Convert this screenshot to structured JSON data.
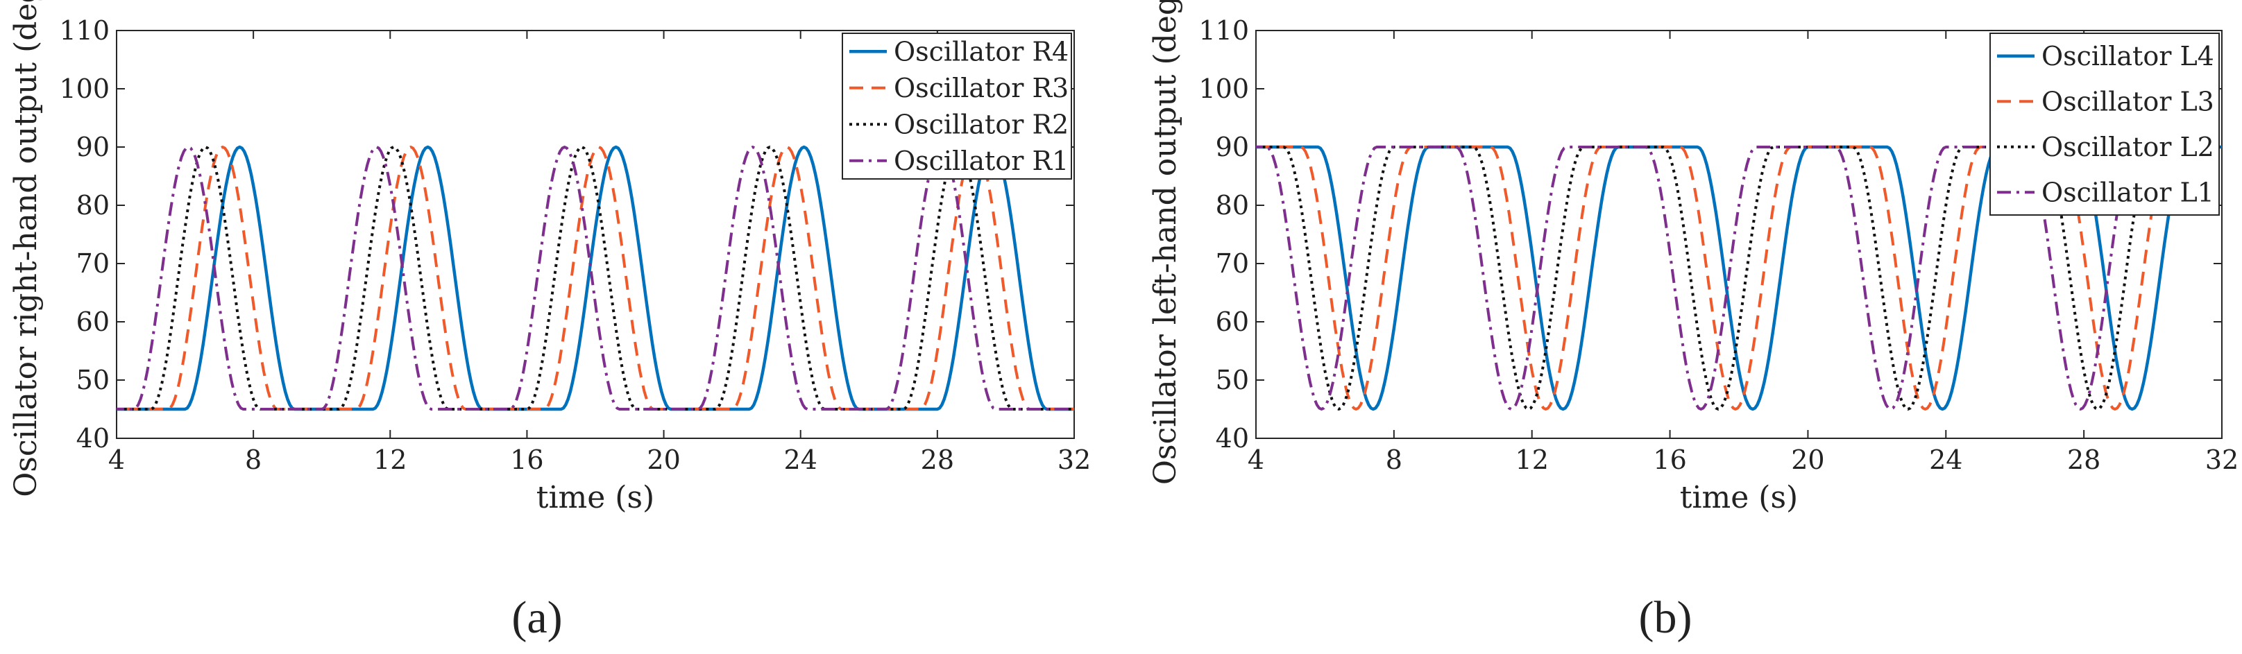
{
  "chart_data": [
    {
      "type": "line",
      "panel_label": "(a)",
      "title": "",
      "xlabel": "time (s)",
      "ylabel": "Oscillator right-hand output (deg)",
      "xlim": [
        4,
        32
      ],
      "ylim": [
        40,
        110
      ],
      "xticks": [
        4,
        8,
        12,
        16,
        20,
        24,
        28,
        32
      ],
      "yticks": [
        40,
        50,
        60,
        70,
        80,
        90,
        100,
        110
      ],
      "grid": false,
      "legend_location": "top-right",
      "waveform": {
        "base": 45,
        "peak": 90,
        "period": 5.5,
        "plateau": 0,
        "rise": 1.6,
        "fall": 1.6,
        "start_level": "base"
      },
      "series": [
        {
          "name": "Oscillator R4",
          "color": "#0072BD",
          "style": "solid",
          "rise_starts": [
            6.0,
            11.5,
            17.0,
            22.5,
            28.0
          ]
        },
        {
          "name": "Oscillator R3",
          "color": "#F0592A",
          "style": "dashed",
          "rise_starts": [
            5.5,
            11.0,
            16.5,
            22.0,
            27.5
          ]
        },
        {
          "name": "Oscillator R2",
          "color": "#111111",
          "style": "dotted",
          "rise_starts": [
            5.0,
            10.5,
            16.0,
            21.5,
            27.0
          ]
        },
        {
          "name": "Oscillator R1",
          "color": "#7E2F8E",
          "style": "dashdot",
          "rise_starts": [
            4.5,
            10.0,
            15.5,
            21.0,
            26.5
          ]
        }
      ]
    },
    {
      "type": "line",
      "panel_label": "(b)",
      "title": "",
      "xlabel": "time (s)",
      "ylabel": "Oscillator left-hand output (deg)",
      "xlim": [
        4,
        32
      ],
      "ylim": [
        40,
        110
      ],
      "xticks": [
        4,
        8,
        12,
        16,
        20,
        24,
        28,
        32
      ],
      "yticks": [
        40,
        50,
        60,
        70,
        80,
        90,
        100,
        110
      ],
      "grid": false,
      "legend_location": "top-right",
      "waveform": {
        "base": 45,
        "peak": 90,
        "period": 5.5,
        "plateau": 2.3,
        "rise": 1.6,
        "fall": 1.6,
        "start_level": "peak"
      },
      "series": [
        {
          "name": "Oscillator L4",
          "color": "#0072BD",
          "style": "solid",
          "rise_starts": [
            0.3,
            5.8,
            11.3,
            16.8,
            22.3,
            27.8
          ]
        },
        {
          "name": "Oscillator L3",
          "color": "#F0592A",
          "style": "dashed",
          "rise_starts": [
            -0.2,
            5.3,
            10.8,
            16.3,
            21.8,
            27.3
          ]
        },
        {
          "name": "Oscillator L2",
          "color": "#111111",
          "style": "dotted",
          "rise_starts": [
            -0.7,
            4.8,
            10.3,
            15.8,
            21.3,
            26.8
          ]
        },
        {
          "name": "Oscillator L1",
          "color": "#7E2F8E",
          "style": "dashdot",
          "rise_starts": [
            -1.2,
            4.3,
            9.8,
            15.3,
            20.8,
            26.3
          ]
        }
      ]
    }
  ]
}
